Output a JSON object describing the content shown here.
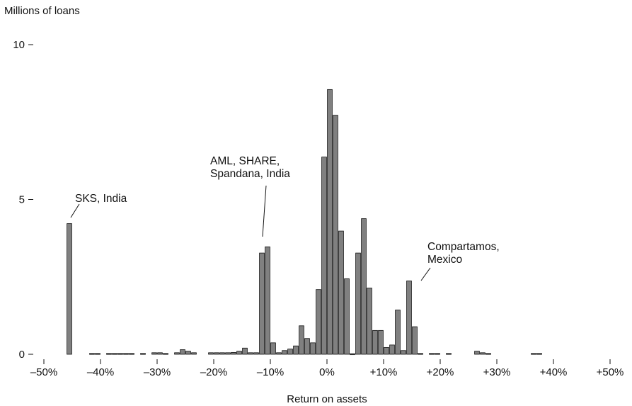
{
  "chart_data": {
    "type": "bar",
    "title": "",
    "ylabel": "Millions of loans",
    "xlabel": "Return on assets",
    "ylim": [
      0,
      10
    ],
    "xlim": [
      -50,
      50
    ],
    "yticks": [
      {
        "value": 0,
        "label": "0"
      },
      {
        "value": 5,
        "label": "5"
      },
      {
        "value": 10,
        "label": "10"
      }
    ],
    "xticks": [
      {
        "value": -50,
        "label": "–50%"
      },
      {
        "value": -40,
        "label": "–40%"
      },
      {
        "value": -30,
        "label": "–30%"
      },
      {
        "value": -20,
        "label": "–20%"
      },
      {
        "value": -10,
        "label": "–10%"
      },
      {
        "value": 0,
        "label": "0%"
      },
      {
        "value": 10,
        "label": "+10%"
      },
      {
        "value": 20,
        "label": "+20%"
      },
      {
        "value": 30,
        "label": "+30%"
      },
      {
        "value": 40,
        "label": "+40%"
      },
      {
        "value": 50,
        "label": "+50%"
      }
    ],
    "bin_width": 1,
    "bins": [
      {
        "x": -45.5,
        "y": 4.22
      },
      {
        "x": -41.5,
        "y": 0.03
      },
      {
        "x": -40.5,
        "y": 0.03
      },
      {
        "x": -38.5,
        "y": 0.03
      },
      {
        "x": -37.5,
        "y": 0.03
      },
      {
        "x": -36.5,
        "y": 0.03
      },
      {
        "x": -35.5,
        "y": 0.03
      },
      {
        "x": -34.5,
        "y": 0.03
      },
      {
        "x": -32.5,
        "y": 0.03
      },
      {
        "x": -30.5,
        "y": 0.05
      },
      {
        "x": -29.5,
        "y": 0.05
      },
      {
        "x": -28.5,
        "y": 0.03
      },
      {
        "x": -26.5,
        "y": 0.05
      },
      {
        "x": -25.5,
        "y": 0.15
      },
      {
        "x": -24.5,
        "y": 0.1
      },
      {
        "x": -23.5,
        "y": 0.05
      },
      {
        "x": -20.5,
        "y": 0.05
      },
      {
        "x": -19.5,
        "y": 0.05
      },
      {
        "x": -18.5,
        "y": 0.05
      },
      {
        "x": -17.5,
        "y": 0.05
      },
      {
        "x": -16.5,
        "y": 0.06
      },
      {
        "x": -15.5,
        "y": 0.1
      },
      {
        "x": -14.5,
        "y": 0.2
      },
      {
        "x": -13.5,
        "y": 0.05
      },
      {
        "x": -12.5,
        "y": 0.05
      },
      {
        "x": -11.5,
        "y": 3.27
      },
      {
        "x": -10.5,
        "y": 3.47
      },
      {
        "x": -9.5,
        "y": 0.37
      },
      {
        "x": -8.5,
        "y": 0.05
      },
      {
        "x": -7.5,
        "y": 0.12
      },
      {
        "x": -6.5,
        "y": 0.17
      },
      {
        "x": -5.5,
        "y": 0.27
      },
      {
        "x": -4.5,
        "y": 0.92
      },
      {
        "x": -3.5,
        "y": 0.51
      },
      {
        "x": -2.5,
        "y": 0.37
      },
      {
        "x": -1.5,
        "y": 2.09
      },
      {
        "x": -0.5,
        "y": 6.37
      },
      {
        "x": 0.5,
        "y": 8.55
      },
      {
        "x": 1.5,
        "y": 7.72
      },
      {
        "x": 2.5,
        "y": 3.98
      },
      {
        "x": 3.5,
        "y": 2.44
      },
      {
        "x": 4.5,
        "y": 0.02
      },
      {
        "x": 5.5,
        "y": 3.27
      },
      {
        "x": 6.5,
        "y": 4.38
      },
      {
        "x": 7.5,
        "y": 2.14
      },
      {
        "x": 8.5,
        "y": 0.77
      },
      {
        "x": 9.5,
        "y": 0.77
      },
      {
        "x": 10.5,
        "y": 0.22
      },
      {
        "x": 11.5,
        "y": 0.3
      },
      {
        "x": 12.5,
        "y": 1.43
      },
      {
        "x": 13.5,
        "y": 0.12
      },
      {
        "x": 14.5,
        "y": 2.37
      },
      {
        "x": 15.5,
        "y": 0.89
      },
      {
        "x": 16.5,
        "y": 0.03
      },
      {
        "x": 18.5,
        "y": 0.03
      },
      {
        "x": 19.5,
        "y": 0.03
      },
      {
        "x": 21.5,
        "y": 0.03
      },
      {
        "x": 26.5,
        "y": 0.1
      },
      {
        "x": 27.5,
        "y": 0.05
      },
      {
        "x": 28.5,
        "y": 0.03
      },
      {
        "x": 36.5,
        "y": 0.03
      },
      {
        "x": 37.5,
        "y": 0.03
      }
    ],
    "annotations": [
      {
        "lines": [
          "SKS, India"
        ],
        "x": -45.5,
        "y": 4.22
      },
      {
        "lines": [
          "AML, SHARE,",
          "Spandana, India"
        ],
        "x": -11,
        "y": 3.6
      },
      {
        "lines": [
          "Compartamos,",
          "Mexico"
        ],
        "x": 15,
        "y": 2.45
      }
    ]
  }
}
